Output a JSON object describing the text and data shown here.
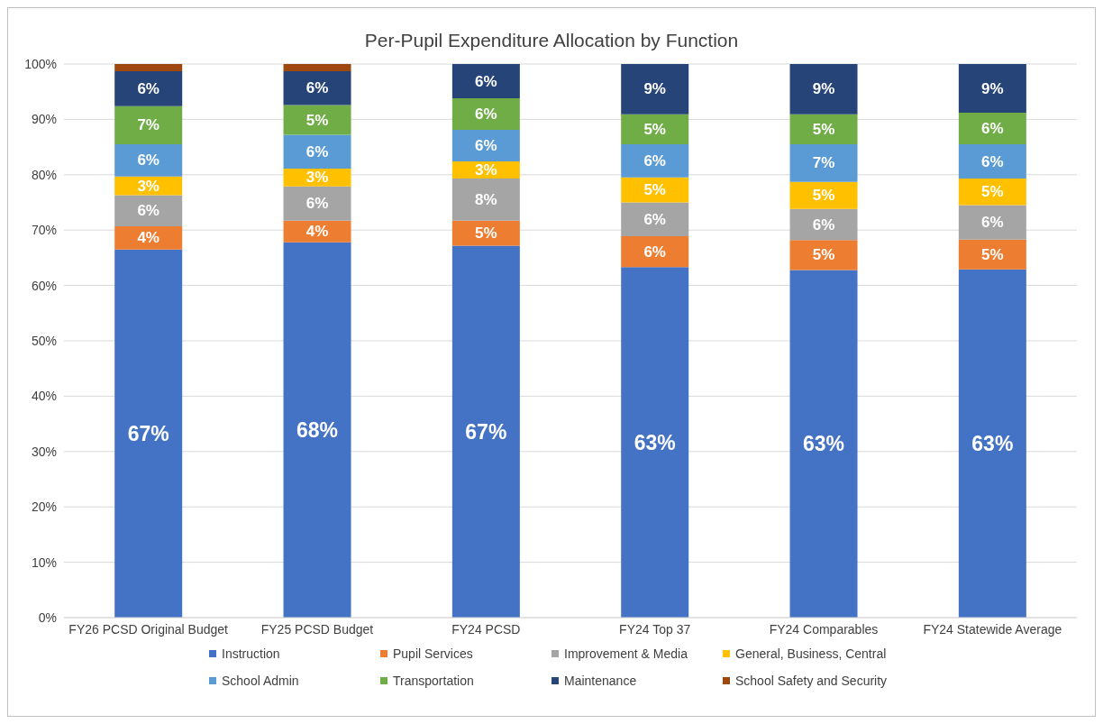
{
  "chart_data": {
    "type": "bar",
    "title": "Per-Pupil Expenditure Allocation by Function",
    "stacked": true,
    "categories": [
      "FY26 PCSD Original Budget",
      "FY25 PCSD Budget",
      "FY24 PCSD",
      "FY24 Top 37",
      "FY24 Comparables",
      "FY24 Statewide Average"
    ],
    "series": [
      {
        "name": "Instruction",
        "color": "#4472c4",
        "values": [
          66.5,
          67.8,
          67.2,
          63.3,
          62.8,
          62.9
        ],
        "value_labels": [
          "67%",
          "68%",
          "67%",
          "63%",
          "63%",
          "63%"
        ]
      },
      {
        "name": "Pupil Services",
        "color": "#ed7d31",
        "values": [
          4.2,
          3.9,
          4.5,
          5.6,
          5.4,
          5.4
        ],
        "value_labels": [
          "4%",
          "4%",
          "5%",
          "6%",
          "5%",
          "5%"
        ]
      },
      {
        "name": "Improvement & Media",
        "color": "#a5a5a5",
        "values": [
          5.6,
          6.2,
          7.6,
          6.1,
          5.6,
          6.2
        ],
        "value_labels": [
          "6%",
          "6%",
          "8%",
          "6%",
          "6%",
          "6%"
        ]
      },
      {
        "name": "General, Business, Central",
        "color": "#ffc000",
        "values": [
          3.4,
          3.2,
          3.1,
          4.5,
          4.9,
          4.8
        ],
        "value_labels": [
          "3%",
          "3%",
          "3%",
          "5%",
          "5%",
          "5%"
        ]
      },
      {
        "name": "School Admin",
        "color": "#5b9bd5",
        "values": [
          5.8,
          6.1,
          5.7,
          6.0,
          6.8,
          6.2
        ],
        "value_labels": [
          "6%",
          "6%",
          "6%",
          "6%",
          "7%",
          "6%"
        ]
      },
      {
        "name": "Transportation",
        "color": "#70ad47",
        "values": [
          6.9,
          5.4,
          5.7,
          5.4,
          5.4,
          5.7
        ],
        "value_labels": [
          "7%",
          "5%",
          "6%",
          "5%",
          "5%",
          "6%"
        ]
      },
      {
        "name": "Maintenance",
        "color": "#264478",
        "values": [
          6.3,
          6.1,
          6.2,
          9.1,
          9.1,
          8.8
        ],
        "value_labels": [
          "6%",
          "6%",
          "6%",
          "9%",
          "9%",
          "9%"
        ]
      },
      {
        "name": "School Safety and Security",
        "color": "#9e480e",
        "values": [
          1.3,
          1.3,
          0,
          0,
          0,
          0
        ],
        "value_labels": [
          null,
          null,
          null,
          null,
          null,
          null
        ]
      }
    ],
    "ylim": [
      0,
      100
    ],
    "yticks": [
      {
        "value": 0,
        "label": "0%"
      },
      {
        "value": 10,
        "label": "10%"
      },
      {
        "value": 20,
        "label": "20%"
      },
      {
        "value": 30,
        "label": "30%"
      },
      {
        "value": 40,
        "label": "40%"
      },
      {
        "value": 50,
        "label": "50%"
      },
      {
        "value": 60,
        "label": "60%"
      },
      {
        "value": 70,
        "label": "70%"
      },
      {
        "value": 80,
        "label": "80%"
      },
      {
        "value": 90,
        "label": "90%"
      },
      {
        "value": 100,
        "label": "100%"
      }
    ],
    "grid": "y",
    "legend": "bottom"
  }
}
